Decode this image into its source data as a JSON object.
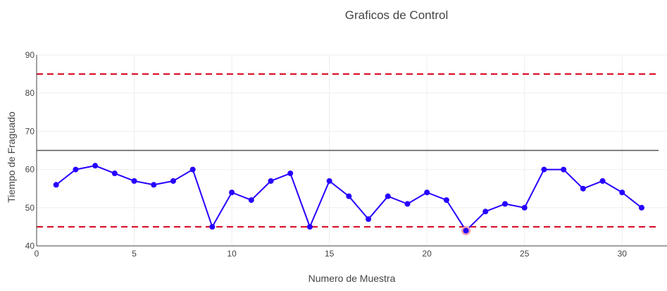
{
  "chart_data": {
    "type": "line",
    "title": "Graficos de Control",
    "xlabel": "Numero de Muestra",
    "ylabel": "Tiempo de Fraguado",
    "xlim": [
      0,
      32.3
    ],
    "ylim": [
      40,
      90
    ],
    "x_ticks": [
      0,
      5,
      10,
      15,
      20,
      25,
      30
    ],
    "y_ticks": [
      40,
      50,
      60,
      70,
      80,
      90
    ],
    "grid": true,
    "series": [
      {
        "x": [
          1,
          2,
          3,
          4,
          5,
          6,
          7,
          8,
          9,
          10,
          11,
          12,
          13,
          14,
          15,
          16,
          17,
          18,
          19,
          20,
          21,
          22,
          23,
          24,
          25,
          26,
          27,
          28,
          29,
          30,
          31
        ],
        "values": [
          56,
          60,
          61,
          59,
          57,
          56,
          57,
          60,
          45,
          54,
          52,
          57,
          59,
          45,
          57,
          53,
          47,
          53,
          51,
          54,
          52,
          44,
          49,
          51,
          50,
          60,
          60,
          55,
          57,
          54,
          50
        ],
        "color": "#2600ff"
      }
    ],
    "reference_lines": [
      {
        "y": 85,
        "style": "dashed",
        "color": "#d6001c"
      },
      {
        "y": 65,
        "style": "solid",
        "color": "#555555"
      },
      {
        "y": 45,
        "style": "dashed",
        "color": "#d6001c"
      }
    ],
    "highlighted_points": [
      {
        "x": 22,
        "y": 44,
        "color": "#f0a0b0"
      }
    ]
  }
}
